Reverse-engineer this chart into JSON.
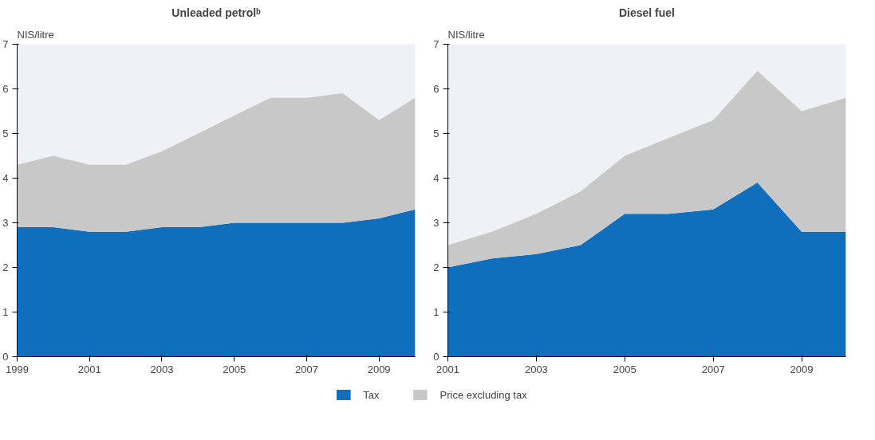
{
  "chart_data": [
    {
      "type": "area",
      "title": "Unleaded petrolᵇ",
      "ylabel": "NIS/litre",
      "stacked": true,
      "legend": "bottom",
      "x": [
        1999,
        2000,
        2001,
        2002,
        2003,
        2004,
        2005,
        2006,
        2007,
        2008,
        2009,
        2010
      ],
      "xlim": [
        1999,
        2010
      ],
      "xticks": [
        1999,
        2001,
        2003,
        2005,
        2007,
        2009
      ],
      "ylim": [
        0,
        7
      ],
      "yticks": [
        0,
        1,
        2,
        3,
        4,
        5,
        6,
        7
      ],
      "series": [
        {
          "name": "Tax",
          "color": "#0f6fbd",
          "values": [
            2.9,
            2.9,
            2.8,
            2.8,
            2.9,
            2.9,
            3.0,
            3.0,
            3.0,
            3.0,
            3.1,
            3.3
          ]
        },
        {
          "name": "Price excluding tax",
          "color": "#c8c8c8",
          "values": [
            1.4,
            1.6,
            1.5,
            1.5,
            1.7,
            2.1,
            2.4,
            2.8,
            2.8,
            2.9,
            2.2,
            2.5
          ]
        }
      ]
    },
    {
      "type": "area",
      "title": "Diesel fuel",
      "ylabel": "NIS/litre",
      "stacked": true,
      "x": [
        2001,
        2002,
        2003,
        2004,
        2005,
        2006,
        2007,
        2008,
        2009,
        2010
      ],
      "xlim": [
        2001,
        2010
      ],
      "xticks": [
        2001,
        2003,
        2005,
        2007,
        2009
      ],
      "ylim": [
        0,
        7
      ],
      "yticks": [
        0,
        1,
        2,
        3,
        4,
        5,
        6,
        7
      ],
      "series": [
        {
          "color": "#0f6fbd",
          "values": [
            2.0,
            2.2,
            2.3,
            2.5,
            3.2,
            3.2,
            3.3,
            3.9,
            2.8,
            2.8
          ]
        },
        {
          "color": "#c8c8c8",
          "values": [
            0.5,
            0.6,
            0.9,
            1.2,
            1.3,
            1.7,
            2.0,
            2.5,
            2.7,
            3.0
          ]
        }
      ]
    }
  ]
}
